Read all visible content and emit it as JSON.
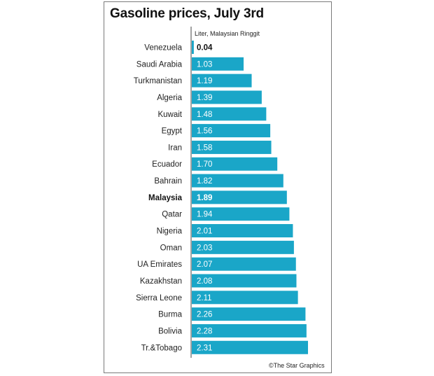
{
  "title": "Gasoline prices, July 3rd",
  "unit_label": "Liter, Malaysian Ringgit",
  "credit": "©The Star Graphics",
  "colors": {
    "bar": "#1aa6c8",
    "axis": "#444444",
    "frame": "#7a7a7a"
  },
  "chart_data": {
    "type": "bar",
    "orientation": "horizontal",
    "title": "Gasoline prices, July 3rd",
    "ylabel": "Liter, Malaysian Ringgit",
    "categories": [
      "Venezuela",
      "Saudi Arabia",
      "Turkmanistan",
      "Algeria",
      "Kuwait",
      "Egypt",
      "Iran",
      "Ecuador",
      "Bahrain",
      "Malaysia",
      "Qatar",
      "Nigeria",
      "Oman",
      "UA Emirates",
      "Kazakhstan",
      "Sierra Leone",
      "Burma",
      "Bolivia",
      "Tr.&Tobago"
    ],
    "values": [
      0.04,
      1.03,
      1.19,
      1.39,
      1.48,
      1.56,
      1.58,
      1.7,
      1.82,
      1.89,
      1.94,
      2.01,
      2.03,
      2.07,
      2.08,
      2.11,
      2.26,
      2.28,
      2.31
    ],
    "labels": [
      "0.04",
      "1.03",
      "1.19",
      "1.39",
      "1.48",
      "1.56",
      "1.58",
      "1.70",
      "1.82",
      "1.89",
      "1.94",
      "2.01",
      "2.03",
      "2.07",
      "2.08",
      "2.11",
      "2.26",
      "2.28",
      "2.31"
    ],
    "highlight": "Malaysia",
    "grid": false,
    "xlim": [
      0,
      2.31
    ]
  }
}
